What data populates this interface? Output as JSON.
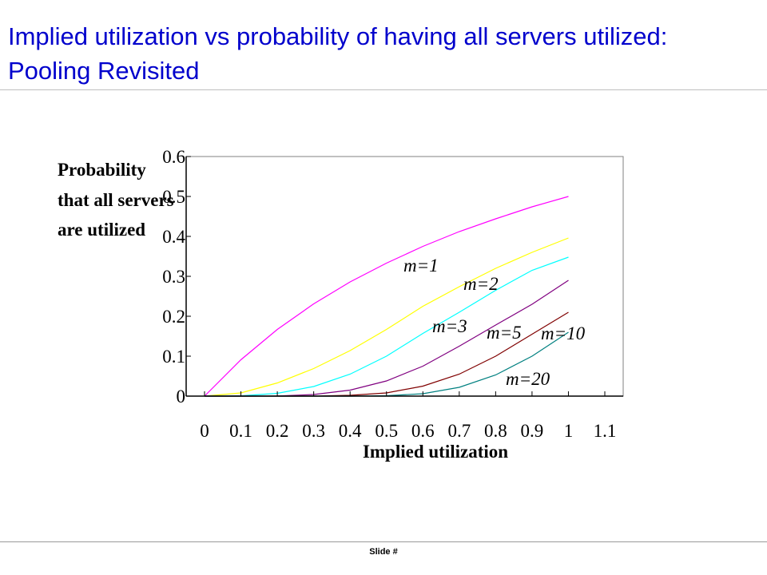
{
  "slide": {
    "title": "Implied utilization vs probability of having all servers utilized: Pooling Revisited",
    "footer": "Slide #"
  },
  "chart_data": {
    "type": "line",
    "title": "",
    "xlabel": "Implied utilization",
    "ylabel_lines": [
      "Probability",
      "that all servers",
      "are utilized"
    ],
    "xlim": [
      0,
      1.1
    ],
    "ylim": [
      0,
      0.6
    ],
    "x_ticks": [
      "0",
      "0.1",
      "0.2",
      "0.3",
      "0.4",
      "0.5",
      "0.6",
      "0.7",
      "0.8",
      "0.9",
      "1",
      "1.1"
    ],
    "y_ticks": [
      "0",
      "0.1",
      "0.2",
      "0.3",
      "0.4",
      "0.5",
      "0.6"
    ],
    "grid": false,
    "x": [
      0,
      0.1,
      0.2,
      0.3,
      0.4,
      0.5,
      0.6,
      0.7,
      0.8,
      0.9,
      1.0
    ],
    "series": [
      {
        "name": "m=1",
        "color": "#ff00ff",
        "values": [
          0,
          0.091,
          0.167,
          0.231,
          0.286,
          0.333,
          0.375,
          0.412,
          0.444,
          0.474,
          0.5
        ]
      },
      {
        "name": "m=2",
        "color": "#ffff00",
        "values": [
          0,
          0.008,
          0.033,
          0.069,
          0.114,
          0.167,
          0.225,
          0.274,
          0.32,
          0.36,
          0.396
        ]
      },
      {
        "name": "m=3",
        "color": "#00ffff",
        "values": [
          0,
          0.0007,
          0.007,
          0.024,
          0.055,
          0.1,
          0.157,
          0.21,
          0.265,
          0.315,
          0.348
        ]
      },
      {
        "name": "m=5",
        "color": "#800080",
        "values": [
          0,
          0,
          0.0004,
          0.004,
          0.015,
          0.038,
          0.075,
          0.125,
          0.178,
          0.23,
          0.29
        ]
      },
      {
        "name": "m=10",
        "color": "#800000",
        "values": [
          0,
          0,
          0,
          0,
          0.002,
          0.008,
          0.025,
          0.055,
          0.1,
          0.155,
          0.21
        ]
      },
      {
        "name": "m=20",
        "color": "#008080",
        "values": [
          0,
          0,
          0,
          0,
          0,
          0.001,
          0.006,
          0.022,
          0.053,
          0.1,
          0.16
        ]
      }
    ]
  }
}
